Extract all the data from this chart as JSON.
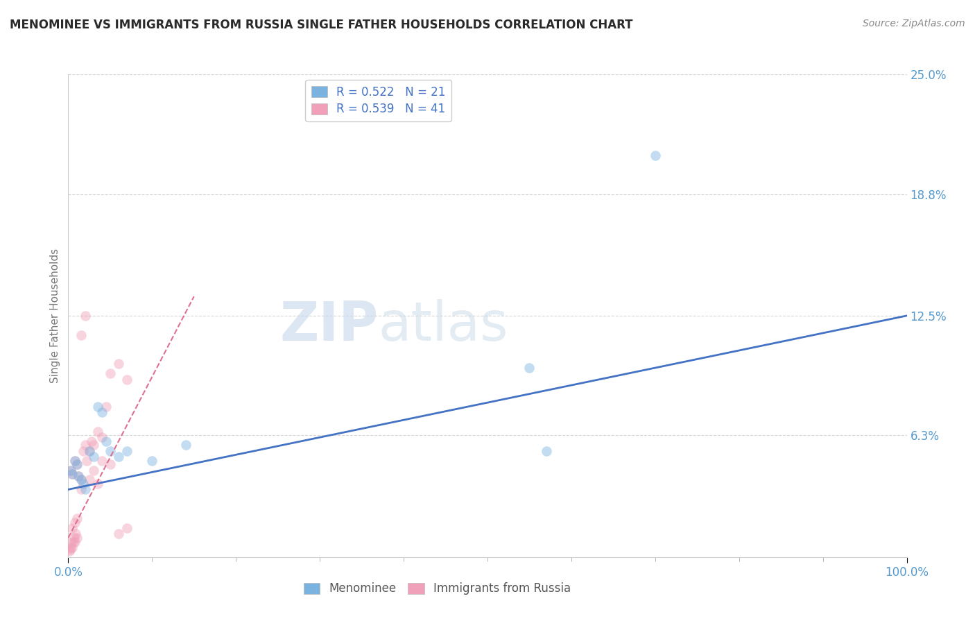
{
  "title": "MENOMINEE VS IMMIGRANTS FROM RUSSIA SINGLE FATHER HOUSEHOLDS CORRELATION CHART",
  "source": "Source: ZipAtlas.com",
  "ylabel": "Single Father Households",
  "watermark_zip": "ZIP",
  "watermark_atlas": "atlas",
  "xlim": [
    0,
    100
  ],
  "ylim": [
    0,
    25
  ],
  "yticks": [
    6.3,
    12.5,
    18.8,
    25.0
  ],
  "ytick_labels": [
    "6.3%",
    "12.5%",
    "18.8%",
    "25.0%"
  ],
  "legend_entries": [
    {
      "label": "R = 0.522   N = 21",
      "color": "#a8c8f0"
    },
    {
      "label": "R = 0.539   N = 41",
      "color": "#f5b8c8"
    }
  ],
  "menominee_scatter": [
    [
      0.3,
      4.5
    ],
    [
      0.5,
      4.3
    ],
    [
      0.8,
      5.0
    ],
    [
      1.0,
      4.8
    ],
    [
      1.2,
      4.2
    ],
    [
      1.5,
      4.0
    ],
    [
      1.8,
      3.8
    ],
    [
      2.0,
      3.5
    ],
    [
      2.5,
      5.5
    ],
    [
      3.0,
      5.2
    ],
    [
      3.5,
      7.8
    ],
    [
      4.0,
      7.5
    ],
    [
      4.5,
      6.0
    ],
    [
      5.0,
      5.5
    ],
    [
      6.0,
      5.2
    ],
    [
      7.0,
      5.5
    ],
    [
      10.0,
      5.0
    ],
    [
      14.0,
      5.8
    ],
    [
      55.0,
      9.8
    ],
    [
      70.0,
      20.8
    ],
    [
      57.0,
      5.5
    ]
  ],
  "russia_scatter": [
    [
      0.1,
      0.3
    ],
    [
      0.2,
      0.4
    ],
    [
      0.3,
      0.5
    ],
    [
      0.4,
      0.8
    ],
    [
      0.5,
      0.5
    ],
    [
      0.6,
      0.8
    ],
    [
      0.7,
      1.0
    ],
    [
      0.8,
      0.8
    ],
    [
      0.9,
      1.2
    ],
    [
      1.0,
      1.0
    ],
    [
      0.3,
      4.5
    ],
    [
      0.5,
      4.3
    ],
    [
      0.8,
      5.0
    ],
    [
      1.0,
      4.8
    ],
    [
      1.2,
      4.2
    ],
    [
      1.5,
      4.0
    ],
    [
      1.8,
      5.5
    ],
    [
      2.0,
      5.8
    ],
    [
      2.2,
      5.0
    ],
    [
      2.5,
      5.5
    ],
    [
      2.8,
      6.0
    ],
    [
      3.0,
      5.8
    ],
    [
      3.5,
      6.5
    ],
    [
      4.0,
      6.2
    ],
    [
      4.5,
      7.8
    ],
    [
      5.0,
      9.5
    ],
    [
      6.0,
      10.0
    ],
    [
      7.0,
      9.2
    ],
    [
      2.0,
      12.5
    ],
    [
      1.5,
      11.5
    ],
    [
      0.5,
      1.5
    ],
    [
      0.8,
      1.8
    ],
    [
      1.0,
      2.0
    ],
    [
      3.0,
      4.5
    ],
    [
      4.0,
      5.0
    ],
    [
      5.0,
      4.8
    ],
    [
      1.5,
      3.5
    ],
    [
      2.5,
      4.0
    ],
    [
      3.5,
      3.8
    ],
    [
      6.0,
      1.2
    ],
    [
      7.0,
      1.5
    ]
  ],
  "menominee_line": {
    "x": [
      0,
      100
    ],
    "y": [
      3.5,
      12.5
    ]
  },
  "russia_line": {
    "x": [
      0,
      15
    ],
    "y": [
      1.0,
      13.5
    ]
  },
  "scatter_size": 110,
  "scatter_alpha": 0.45,
  "menominee_color": "#7ab3e0",
  "russia_color": "#f0a0b8",
  "menominee_line_color": "#4472c4",
  "russia_line_color": "#e07090",
  "bg_color": "#ffffff",
  "grid_color": "#cccccc",
  "title_color": "#2a2a2a",
  "axis_label_color": "#5599cc",
  "ylabel_color": "#777777"
}
